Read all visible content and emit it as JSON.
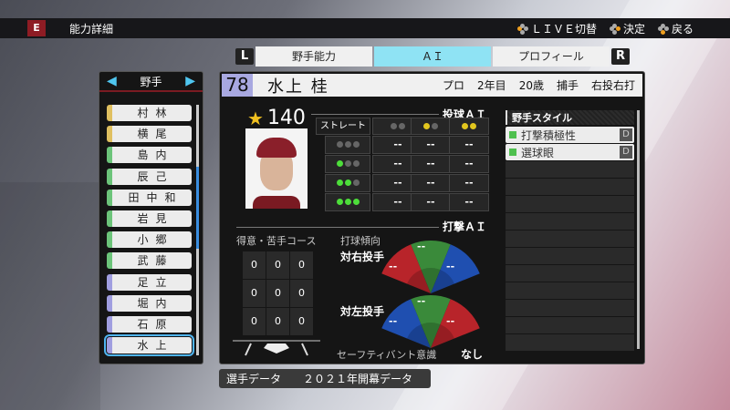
{
  "topbar": {
    "logo": "E",
    "title": "能力詳細",
    "hints": [
      {
        "icon": "button-left-icon",
        "label": "ＬＩＶＥ切替"
      },
      {
        "icon": "button-right-icon",
        "label": "決定"
      },
      {
        "icon": "button-bottom-icon",
        "label": "戻る"
      }
    ]
  },
  "tabs": {
    "left": "L",
    "right": "R",
    "items": [
      "野手能力",
      "ＡＩ",
      "プロフィール"
    ],
    "active": 1
  },
  "list": {
    "header": "野手",
    "items": [
      {
        "name": "村林",
        "color": "#e0c060"
      },
      {
        "name": "横尾",
        "color": "#e0c060"
      },
      {
        "name": "島内",
        "color": "#6cc47a"
      },
      {
        "name": "辰己",
        "color": "#6cc47a"
      },
      {
        "name": "田中和",
        "color": "#6cc47a"
      },
      {
        "name": "岩見",
        "color": "#6cc47a"
      },
      {
        "name": "小郷",
        "color": "#6cc47a"
      },
      {
        "name": "武藤",
        "color": "#6cc47a"
      },
      {
        "name": "足立",
        "color": "#a09ee0"
      },
      {
        "name": "堀内",
        "color": "#a09ee0"
      },
      {
        "name": "石原",
        "color": "#a09ee0"
      },
      {
        "name": "水上",
        "color": "#a09ee0"
      }
    ],
    "selected": 11
  },
  "player": {
    "number": "78",
    "name": "水上 桂",
    "status": "プロ",
    "year": "2年目",
    "age": "20歳",
    "position": "捕手",
    "throw_bat": "右投右打",
    "rating": "140"
  },
  "pitch_ai": {
    "title": "投球ＡＩ",
    "row_header": "ストレート傾向",
    "columns": [
      [
        "n",
        "n"
      ],
      [
        "y",
        "n"
      ],
      [
        "y",
        "y"
      ]
    ],
    "rows": [
      {
        "dots": [
          "n",
          "n",
          "n"
        ],
        "values": [
          "--",
          "--",
          "--"
        ]
      },
      {
        "dots": [
          "g",
          "n",
          "n"
        ],
        "values": [
          "--",
          "--",
          "--"
        ]
      },
      {
        "dots": [
          "g",
          "g",
          "n"
        ],
        "values": [
          "--",
          "--",
          "--"
        ]
      },
      {
        "dots": [
          "g",
          "g",
          "g"
        ],
        "values": [
          "--",
          "--",
          "--"
        ]
      }
    ]
  },
  "bat_ai": {
    "title": "打撃ＡＩ",
    "course_label": "得意・苦手コース",
    "course": [
      "0",
      "0",
      "0",
      "0",
      "0",
      "0",
      "0",
      "0",
      "0"
    ],
    "tendency_label": "打球傾向",
    "vs_right": {
      "label": "対右投手",
      "left": "--",
      "center": "--",
      "right": "--"
    },
    "vs_left": {
      "label": "対左投手",
      "left": "--",
      "center": "--",
      "right": "--"
    },
    "bunt_label": "セーフティバント意識",
    "bunt_value": "なし"
  },
  "style": {
    "title": "野手スタイル",
    "items": [
      {
        "label": "打撃積極性",
        "rank": "D"
      },
      {
        "label": "選球眼",
        "rank": "D"
      }
    ]
  },
  "bottom": {
    "label": "選手データ",
    "value": "２０２１年開幕データ"
  }
}
